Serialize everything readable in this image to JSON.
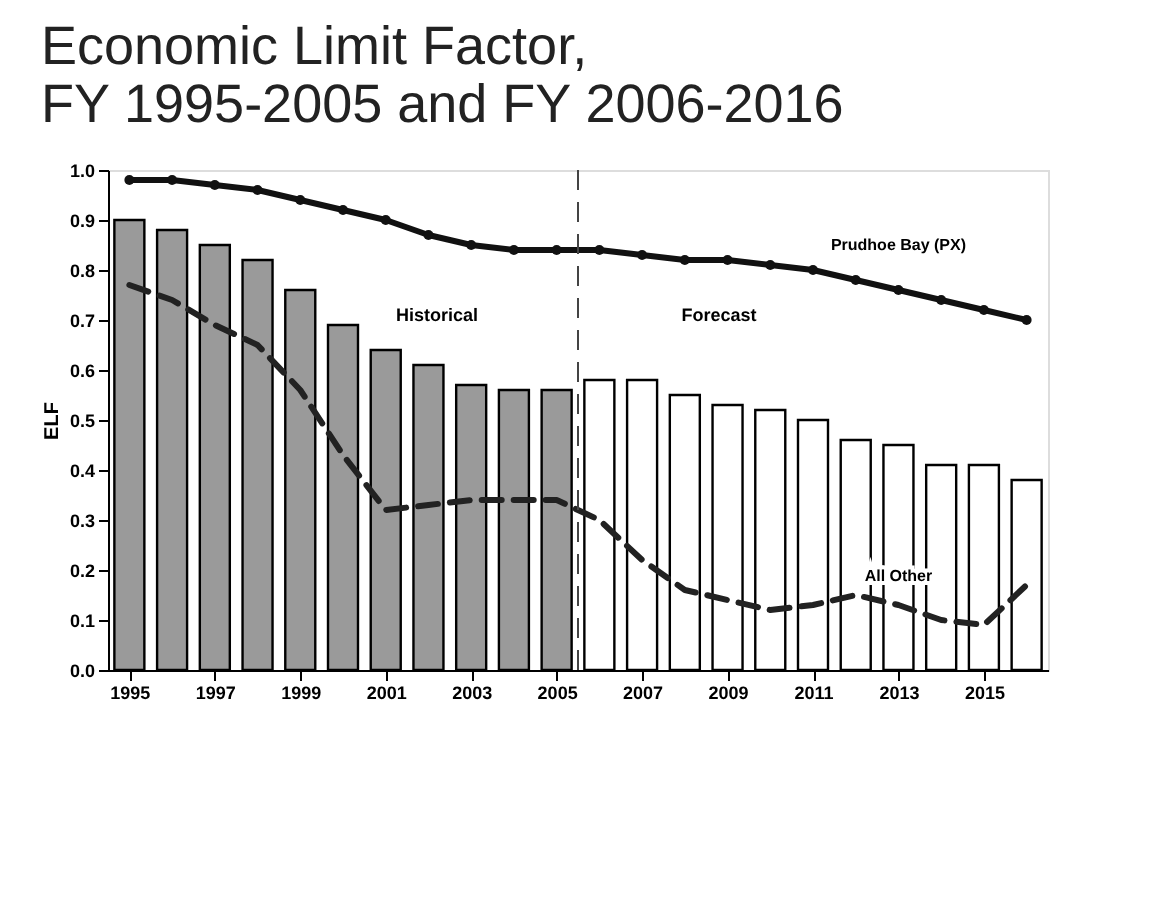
{
  "chart_data": {
    "type": "bar",
    "title": [
      "Economic Limit Factor,",
      "FY 1995-2005 and FY 2006-2016"
    ],
    "ylabel": "ELF",
    "x": [
      1995,
      1996,
      1997,
      1998,
      1999,
      2000,
      2001,
      2002,
      2003,
      2004,
      2005,
      2006,
      2007,
      2008,
      2009,
      2010,
      2011,
      2012,
      2013,
      2014,
      2015,
      2016
    ],
    "xlim": [
      1994.5,
      2016.5
    ],
    "xticks": [
      1995,
      1997,
      1999,
      2001,
      2003,
      2005,
      2007,
      2009,
      2011,
      2013,
      2015
    ],
    "ylim": [
      0,
      1.0
    ],
    "yticks": [
      {
        "value": 0,
        "label": "0.0"
      },
      {
        "value": 0.1,
        "label": "0.1"
      },
      {
        "value": 0.2,
        "label": "0.2"
      },
      {
        "value": 0.3,
        "label": "0.3"
      },
      {
        "value": 0.4,
        "label": "0.4"
      },
      {
        "value": 0.5,
        "label": "0.5"
      },
      {
        "value": 0.6,
        "label": "0.6"
      },
      {
        "value": 0.7,
        "label": "0.7"
      },
      {
        "value": 0.8,
        "label": "0.8"
      },
      {
        "value": 0.9,
        "label": "0.9"
      },
      {
        "value": 1.0,
        "label": "1.0"
      }
    ],
    "series": [
      {
        "colors": [
          "#9a9a9a",
          "#9a9a9a",
          "#9a9a9a",
          "#9a9a9a",
          "#9a9a9a",
          "#9a9a9a",
          "#9a9a9a",
          "#9a9a9a",
          "#9a9a9a",
          "#9a9a9a",
          "#9a9a9a",
          "#ffffff",
          "#ffffff",
          "#ffffff",
          "#ffffff",
          "#ffffff",
          "#ffffff",
          "#ffffff",
          "#ffffff",
          "#ffffff",
          "#ffffff",
          "#ffffff"
        ],
        "values": [
          0.9,
          0.88,
          0.85,
          0.82,
          0.76,
          0.69,
          0.64,
          0.61,
          0.57,
          0.56,
          0.56,
          0.58,
          0.58,
          0.55,
          0.53,
          0.52,
          0.5,
          0.46,
          0.45,
          0.41,
          0.41,
          0.38
        ]
      },
      {
        "type": "line",
        "name": "Prudhoe Bay (PX)",
        "color": "#111111",
        "marker": "circle",
        "line_style": "solid",
        "values": [
          0.98,
          0.98,
          0.97,
          0.96,
          0.94,
          0.92,
          0.9,
          0.87,
          0.85,
          0.84,
          0.84,
          0.84,
          0.83,
          0.82,
          0.82,
          0.81,
          0.8,
          0.78,
          0.76,
          0.74,
          0.72,
          0.7
        ]
      },
      {
        "type": "line",
        "name": "All Other",
        "color": "#222222",
        "marker": "none",
        "line_style": "dashed",
        "values": [
          0.77,
          0.74,
          0.69,
          0.65,
          0.56,
          0.43,
          0.32,
          0.33,
          0.34,
          0.34,
          0.34,
          0.3,
          0.22,
          0.16,
          0.14,
          0.12,
          0.13,
          0.15,
          0.13,
          0.1,
          0.09,
          0.17
        ]
      }
    ],
    "ref_lines": [
      {
        "axis": "x",
        "value": 2005.5,
        "line_style": "dashed",
        "color": "#444444"
      }
    ],
    "annotations": [
      "Historical",
      "Forecast"
    ],
    "legend": false,
    "grid": false
  }
}
